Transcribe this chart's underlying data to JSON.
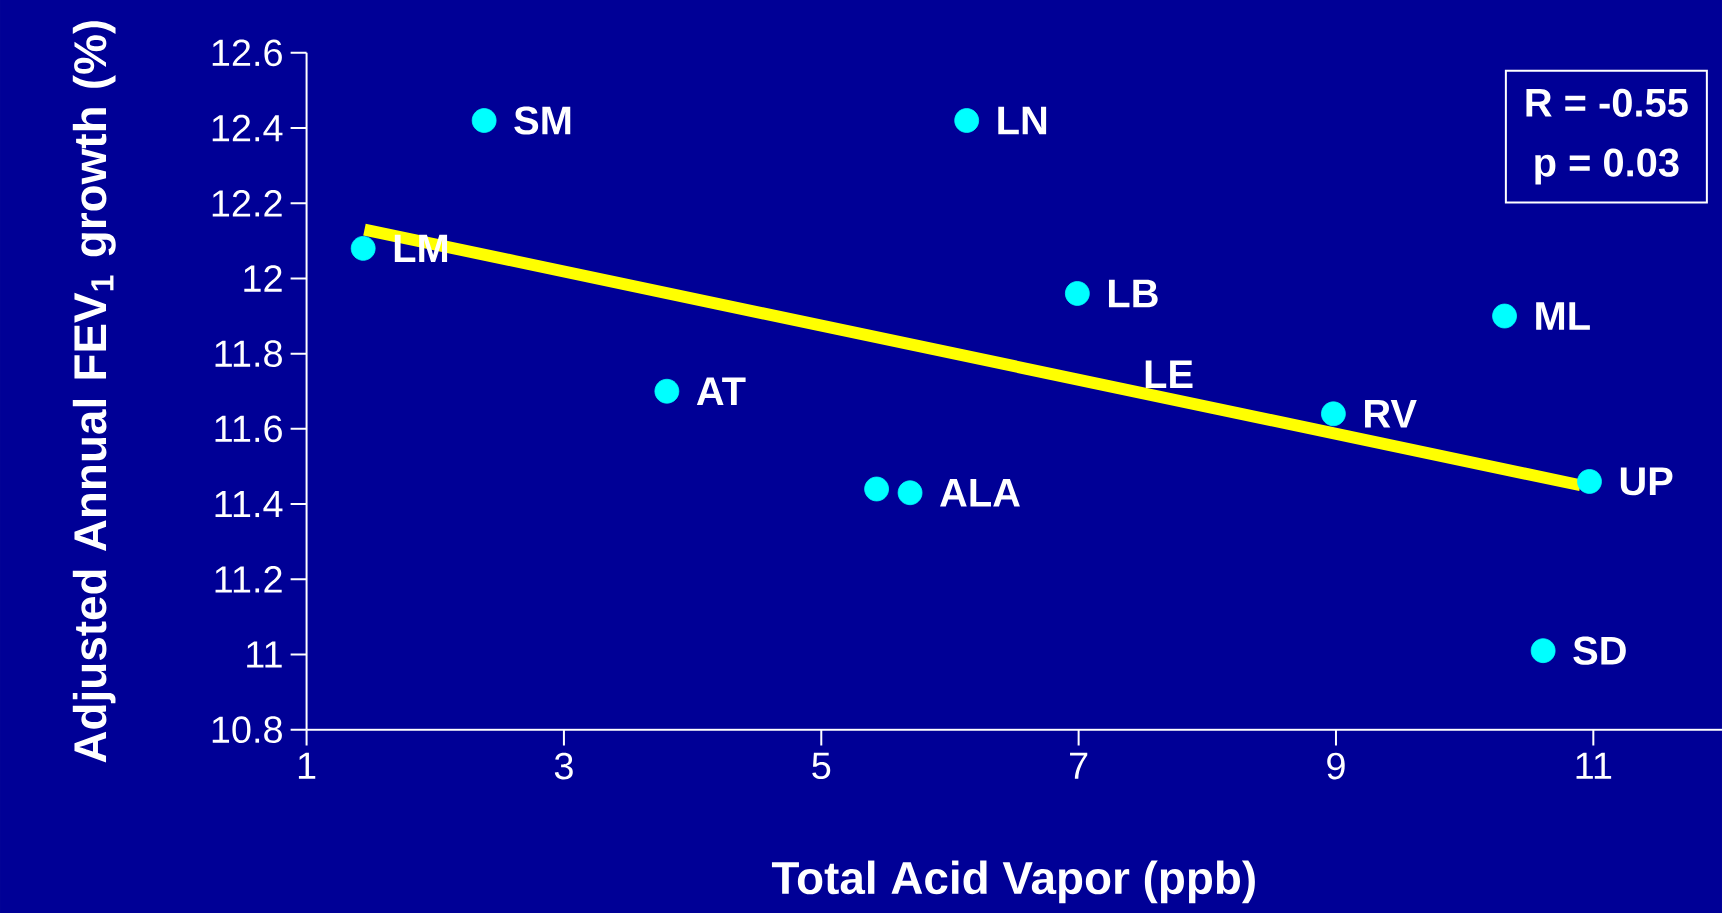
{
  "chart_data": {
    "type": "scatter",
    "xlabel": "Total Acid Vapor (ppb)",
    "ylabel": "Adjusted Annual FEV$_{1}$ growth (%)",
    "xlim": [
      1,
      12
    ],
    "ylim": [
      10.8,
      12.6
    ],
    "xticks": [
      1,
      3,
      5,
      7,
      9,
      11
    ],
    "yticks": [
      10.8,
      11,
      11.2,
      11.4,
      11.6,
      11.8,
      12,
      12.2,
      12.4,
      12.6
    ],
    "grid": false,
    "series": [
      {
        "type": "scatter",
        "color": "#00ffff",
        "marker": "circle",
        "x": [
          2.38,
          6.13,
          1.44,
          6.99,
          10.31,
          3.8,
          8.98,
          10.97,
          5.43,
          5.69,
          10.61
        ],
        "values": [
          12.42,
          12.42,
          12.08,
          11.96,
          11.9,
          11.7,
          11.64,
          11.46,
          11.44,
          11.43,
          11.01
        ],
        "value_labels": [
          "SM",
          "LN",
          "LM",
          "LB",
          "ML",
          "AT",
          "RV",
          "UP",
          null,
          "ALA",
          "SD"
        ]
      },
      {
        "type": "line",
        "color": "#ffff00",
        "marker": "none",
        "x": [
          1.45,
          10.9
        ],
        "values": [
          12.13,
          11.45
        ]
      }
    ],
    "annotations": [
      "LE",
      "R = -0.55",
      "p = 0.03"
    ]
  }
}
